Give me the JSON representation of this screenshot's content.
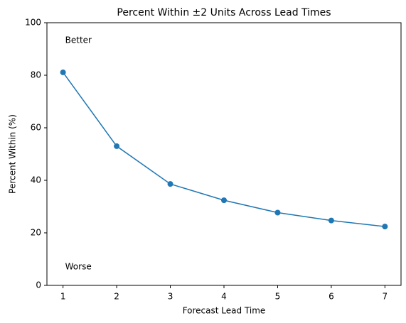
{
  "chart_data": {
    "type": "line",
    "title": "Percent Within ±2 Units Across Lead Times",
    "x_label": "Forecast Lead Time",
    "y_label": "Percent Within (%)",
    "annotations": [
      "Better",
      "Worse"
    ],
    "x": [
      1,
      2,
      3,
      4,
      5,
      6,
      7
    ],
    "series": [
      {
        "name": "Percent Within",
        "color": "#1f77b4",
        "values": [
          81.1,
          53.0,
          38.6,
          32.4,
          27.7,
          24.7,
          22.4
        ]
      }
    ],
    "xlim": [
      0.7,
      7.3
    ],
    "xticks": [
      1,
      2,
      3,
      4,
      5,
      6,
      7
    ],
    "ylim": [
      0,
      100
    ],
    "yticks": [
      0,
      20,
      40,
      60,
      80,
      100
    ],
    "markers": true,
    "grid": false
  }
}
